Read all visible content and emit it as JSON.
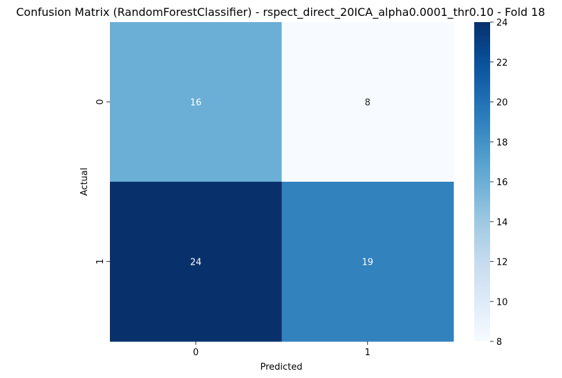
{
  "chart_data": {
    "type": "heatmap",
    "title": "Confusion Matrix (RandomForestClassifier) - rspect_direct_20ICA_alpha0.0001_thr0.10 - Fold 18",
    "xlabel": "Predicted",
    "ylabel": "Actual",
    "x_categories": [
      "0",
      "1"
    ],
    "y_categories": [
      "0",
      "1"
    ],
    "matrix": [
      [
        16,
        8
      ],
      [
        24,
        19
      ]
    ],
    "colormap": "Blues",
    "color_range": [
      8,
      24
    ],
    "colorbar_ticks": [
      "8",
      "10",
      "12",
      "14",
      "16",
      "18",
      "20",
      "22",
      "24"
    ],
    "annotations": true,
    "grid": false
  }
}
